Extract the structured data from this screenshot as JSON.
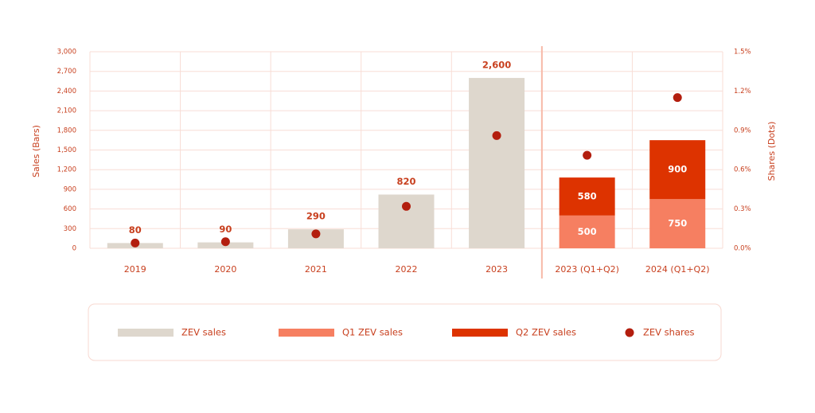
{
  "chart_data": {
    "type": "bar",
    "categories": [
      "2019",
      "2020",
      "2021",
      "2022",
      "2023",
      "2023 (Q1+Q2)",
      "2024 (Q1+Q2)"
    ],
    "y_label": "Sales (Bars)",
    "y2_label": "Shares (Dots)",
    "series": [
      {
        "name": "ZEV sales",
        "type": "bar",
        "color": "#ded7cd",
        "values": [
          80,
          90,
          290,
          820,
          2600,
          null,
          null
        ],
        "value_labels": [
          "80",
          "90",
          "290",
          "820",
          "2,600",
          null,
          null
        ]
      },
      {
        "name": "Q1 ZEV sales",
        "type": "bar",
        "color": "#f67f61",
        "values": [
          null,
          null,
          null,
          null,
          null,
          500,
          750
        ]
      },
      {
        "name": "Q2 ZEV sales",
        "type": "bar",
        "color": "#dd3300",
        "values": [
          null,
          null,
          null,
          null,
          null,
          580,
          900
        ]
      },
      {
        "name": "ZEV shares",
        "type": "scatter",
        "axis": "y2",
        "color": "#b31e0e",
        "values": [
          0.04,
          0.05,
          0.11,
          0.32,
          0.86,
          0.71,
          1.15
        ]
      }
    ],
    "ylim": [
      0,
      3000
    ],
    "yticks": [
      0,
      300,
      600,
      900,
      {
        "value": 1200,
        "label": "1,200"
      },
      {
        "value": 1500,
        "label": "1,500"
      },
      {
        "value": 1800,
        "label": "1,800"
      },
      {
        "value": 2100,
        "label": "2,100"
      },
      {
        "value": 2400,
        "label": "2,400"
      },
      {
        "value": 2700,
        "label": "2,700"
      },
      {
        "value": 3000,
        "label": "3,000"
      }
    ],
    "y2lim": [
      0,
      1.5
    ],
    "y2ticks": [
      {
        "value": 0,
        "label": "0.0%"
      },
      {
        "value": 0.3,
        "label": "0.3%"
      },
      {
        "value": 0.6,
        "label": "0.6%"
      },
      {
        "value": 0.9,
        "label": "0.9%"
      },
      {
        "value": 1.2,
        "label": "1.2%"
      },
      {
        "value": 1.5,
        "label": "1.5%"
      }
    ],
    "grid": true
  }
}
